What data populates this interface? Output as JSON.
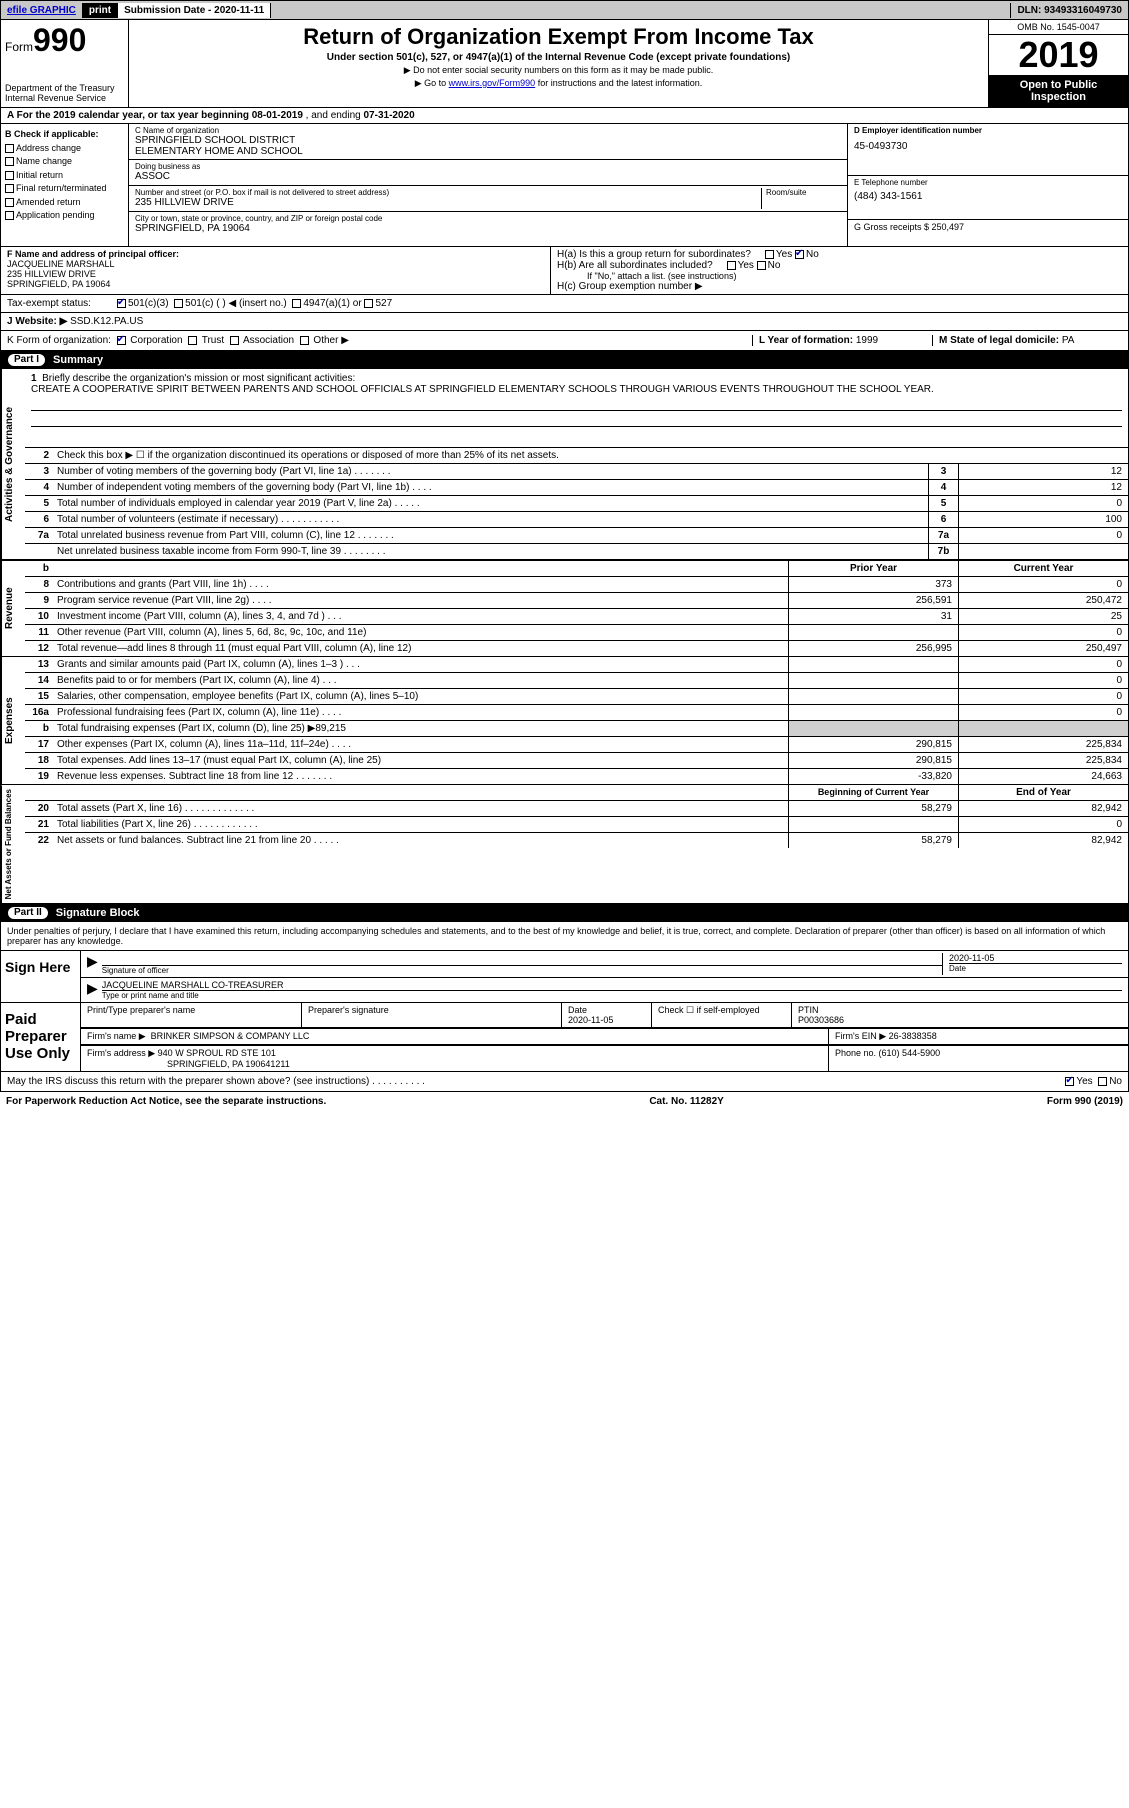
{
  "topbar": {
    "efile": "efile GRAPHIC",
    "print": "print",
    "subdate_label": "Submission Date - ",
    "subdate": "2020-11-11",
    "dln_label": "DLN: ",
    "dln": "93493316049730"
  },
  "header": {
    "form_prefix": "Form",
    "form_num": "990",
    "dept": "Department of the Treasury\nInternal Revenue Service",
    "title": "Return of Organization Exempt From Income Tax",
    "sub": "Under section 501(c), 527, or 4947(a)(1) of the Internal Revenue Code (except private foundations)",
    "note1": "▶ Do not enter social security numbers on this form as it may be made public.",
    "note2_pre": "▶ Go to ",
    "note2_link": "www.irs.gov/Form990",
    "note2_post": " for instructions and the latest information.",
    "omb": "OMB No. 1545-0047",
    "year": "2019",
    "open": "Open to Public Inspection"
  },
  "rowA": {
    "text_pre": "A For the 2019 calendar year, or tax year beginning ",
    "begin": "08-01-2019",
    "text_mid": " , and ending ",
    "end": "07-31-2020"
  },
  "colB": {
    "label": "B Check if applicable:",
    "items": [
      "Address change",
      "Name change",
      "Initial return",
      "Final return/terminated",
      "Amended return",
      "Application pending"
    ]
  },
  "colC": {
    "name_lbl": "C Name of organization",
    "name": "SPRINGFIELD SCHOOL DISTRICT\nELEMENTARY HOME AND SCHOOL",
    "dba_lbl": "Doing business as",
    "dba": "ASSOC",
    "addr_lbl": "Number and street (or P.O. box if mail is not delivered to street address)",
    "room_lbl": "Room/suite",
    "addr": "235 HILLVIEW DRIVE",
    "city_lbl": "City or town, state or province, country, and ZIP or foreign postal code",
    "city": "SPRINGFIELD, PA  19064"
  },
  "colD": {
    "ein_lbl": "D Employer identification number",
    "ein": "45-0493730",
    "tel_lbl": "E Telephone number",
    "tel": "(484) 343-1561",
    "gross_lbl": "G Gross receipts $ ",
    "gross": "250,497"
  },
  "rowF": {
    "lbl": "F Name and address of principal officer:",
    "name": "JACQUELINE MARSHALL",
    "addr1": "235 HILLVIEW DRIVE",
    "addr2": "SPRINGFIELD, PA  19064"
  },
  "rowH": {
    "ha": "H(a)  Is this a group return for subordinates?",
    "hb": "H(b)  Are all subordinates included?",
    "hb_note": "If \"No,\" attach a list. (see instructions)",
    "hc": "H(c)  Group exemption number ▶",
    "yes": "Yes",
    "no": "No"
  },
  "rowI": {
    "lbl": "Tax-exempt status:",
    "o1": "501(c)(3)",
    "o2": "501(c) (  ) ◀ (insert no.)",
    "o3": "4947(a)(1) or",
    "o4": "527"
  },
  "rowJ": {
    "lbl": "J    Website: ▶",
    "val": "SSD.K12.PA.US"
  },
  "rowK": {
    "lbl": "K Form of organization:",
    "o1": "Corporation",
    "o2": "Trust",
    "o3": "Association",
    "o4": "Other ▶",
    "l_lbl": "L Year of formation: ",
    "l_val": "1999",
    "m_lbl": "M State of legal domicile: ",
    "m_val": "PA"
  },
  "part1": {
    "num": "Part I",
    "title": "Summary"
  },
  "mission": {
    "num": "1",
    "lbl": "Briefly describe the organization's mission or most significant activities:",
    "text": "CREATE A COOPERATIVE SPIRIT BETWEEN PARENTS AND SCHOOL OFFICIALS AT SPRINGFIELD ELEMENTARY SCHOOLS THROUGH VARIOUS EVENTS THROUGHOUT THE SCHOOL YEAR."
  },
  "gov_rows": [
    {
      "n": "2",
      "t": "Check this box ▶ ☐ if the organization discontinued its operations or disposed of more than 25% of its net assets.",
      "box": "",
      "v": ""
    },
    {
      "n": "3",
      "t": "Number of voting members of the governing body (Part VI, line 1a)  .    .    .    .    .    .    .",
      "box": "3",
      "v": "12"
    },
    {
      "n": "4",
      "t": "Number of independent voting members of the governing body (Part VI, line 1b)   .    .    .    .",
      "box": "4",
      "v": "12"
    },
    {
      "n": "5",
      "t": "Total number of individuals employed in calendar year 2019 (Part V, line 2a)  .    .    .    .    .",
      "box": "5",
      "v": "0"
    },
    {
      "n": "6",
      "t": "Total number of volunteers (estimate if necessary)    .    .    .    .    .    .    .    .    .    .    .",
      "box": "6",
      "v": "100"
    },
    {
      "n": "7a",
      "t": "Total unrelated business revenue from Part VIII, column (C), line 12  .    .    .    .    .    .    .",
      "box": "7a",
      "v": "0"
    },
    {
      "n": "",
      "t": "Net unrelated business taxable income from Form 990-T, line 39   .    .    .    .    .    .    .    .",
      "box": "7b",
      "v": ""
    }
  ],
  "pycy_hdr": {
    "py": "Prior Year",
    "cy": "Current Year"
  },
  "rev_rows": [
    {
      "n": "8",
      "t": "Contributions and grants (Part VIII, line 1h)   .    .    .    .",
      "py": "373",
      "cy": "0"
    },
    {
      "n": "9",
      "t": "Program service revenue (Part VIII, line 2g)   .    .    .    .",
      "py": "256,591",
      "cy": "250,472"
    },
    {
      "n": "10",
      "t": "Investment income (Part VIII, column (A), lines 3, 4, and 7d )   .    .    .",
      "py": "31",
      "cy": "25"
    },
    {
      "n": "11",
      "t": "Other revenue (Part VIII, column (A), lines 5, 6d, 8c, 9c, 10c, and 11e)",
      "py": "",
      "cy": "0"
    },
    {
      "n": "12",
      "t": "Total revenue—add lines 8 through 11 (must equal Part VIII, column (A), line 12)",
      "py": "256,995",
      "cy": "250,497"
    }
  ],
  "exp_rows": [
    {
      "n": "13",
      "t": "Grants and similar amounts paid (Part IX, column (A), lines 1–3 )  .    .    .",
      "py": "",
      "cy": "0"
    },
    {
      "n": "14",
      "t": "Benefits paid to or for members (Part IX, column (A), line 4)   .    .    .",
      "py": "",
      "cy": "0"
    },
    {
      "n": "15",
      "t": "Salaries, other compensation, employee benefits (Part IX, column (A), lines 5–10)",
      "py": "",
      "cy": "0"
    },
    {
      "n": "16a",
      "t": "Professional fundraising fees (Part IX, column (A), line 11e)   .    .    .    .",
      "py": "",
      "cy": "0"
    },
    {
      "n": "b",
      "t": "Total fundraising expenses (Part IX, column (D), line 25) ▶89,215",
      "py": "GRAY",
      "cy": "GRAY"
    },
    {
      "n": "17",
      "t": "Other expenses (Part IX, column (A), lines 11a–11d, 11f–24e)  .    .    .    .",
      "py": "290,815",
      "cy": "225,834"
    },
    {
      "n": "18",
      "t": "Total expenses. Add lines 13–17 (must equal Part IX, column (A), line 25)",
      "py": "290,815",
      "cy": "225,834"
    },
    {
      "n": "19",
      "t": "Revenue less expenses. Subtract line 18 from line 12  .    .    .    .    .    .    .",
      "py": "-33,820",
      "cy": "24,663"
    }
  ],
  "na_hdr": {
    "py": "Beginning of Current Year",
    "cy": "End of Year"
  },
  "na_rows": [
    {
      "n": "20",
      "t": "Total assets (Part X, line 16)  .    .    .    .    .    .    .    .    .    .    .    .    .",
      "py": "58,279",
      "cy": "82,942"
    },
    {
      "n": "21",
      "t": "Total liabilities (Part X, line 26)  .    .    .    .    .    .    .    .    .    .    .    .",
      "py": "",
      "cy": "0"
    },
    {
      "n": "22",
      "t": "Net assets or fund balances. Subtract line 21 from line 20  .    .    .    .    .",
      "py": "58,279",
      "cy": "82,942"
    }
  ],
  "vtabs": {
    "gov": "Activities & Governance",
    "rev": "Revenue",
    "exp": "Expenses",
    "na": "Net Assets or Fund Balances"
  },
  "part2": {
    "num": "Part II",
    "title": "Signature Block"
  },
  "sig": {
    "decl": "Under penalties of perjury, I declare that I have examined this return, including accompanying schedules and statements, and to the best of my knowledge and belief, it is true, correct, and complete. Declaration of preparer (other than officer) is based on all information of which preparer has any knowledge.",
    "sign_here": "Sign Here",
    "sig_officer": "Signature of officer",
    "date": "Date",
    "date_val": "2020-11-05",
    "name_title": "JACQUELINE MARSHALL CO-TREASURER",
    "type_name": "Type or print name and title",
    "paid": "Paid Preparer Use Only",
    "prep_name_lbl": "Print/Type preparer's name",
    "prep_sig_lbl": "Preparer's signature",
    "prep_date_lbl": "Date",
    "prep_date": "2020-11-05",
    "self_emp": "Check ☐ if self-employed",
    "ptin_lbl": "PTIN",
    "ptin": "P00303686",
    "firm_name_lbl": "Firm's name    ▶",
    "firm_name": "BRINKER SIMPSON & COMPANY LLC",
    "firm_ein_lbl": "Firm's EIN ▶",
    "firm_ein": "26-3838358",
    "firm_addr_lbl": "Firm's address ▶",
    "firm_addr1": "940 W SPROUL RD STE 101",
    "firm_addr2": "SPRINGFIELD, PA  190641211",
    "phone_lbl": "Phone no. ",
    "phone": "(610) 544-5900",
    "discuss": "May the IRS discuss this return with the preparer shown above? (see instructions)   .    .    .    .    .    .    .    .    .    .",
    "d_yes": "Yes",
    "d_no": "No"
  },
  "footer": {
    "pra": "For Paperwork Reduction Act Notice, see the separate instructions.",
    "cat": "Cat. No. 11282Y",
    "form": "Form 990 (2019)"
  }
}
